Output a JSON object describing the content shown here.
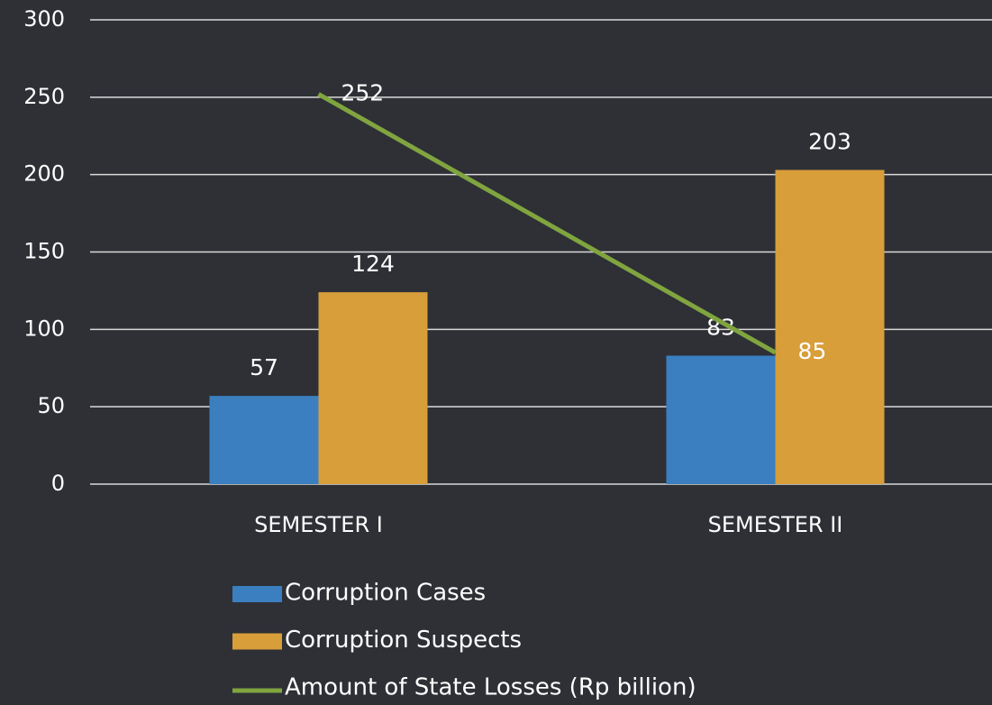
{
  "chart_data": {
    "type": "bar",
    "categories": [
      "SEMESTER I",
      "SEMESTER II"
    ],
    "series": [
      {
        "name": "Corruption Cases",
        "color": "#3b7fc0",
        "values": [
          57,
          83
        ]
      },
      {
        "name": "Corruption Suspects",
        "color": "#d89e3a",
        "values": [
          124,
          203
        ]
      },
      {
        "name": "Amount of State Losses (Rp billion)",
        "color": "#80a53f",
        "type": "line",
        "values": [
          252,
          85
        ]
      }
    ],
    "ylim": [
      0,
      300
    ],
    "yticks": [
      0,
      50,
      100,
      150,
      200,
      250,
      300
    ],
    "grid": true,
    "legend": "bottom"
  }
}
